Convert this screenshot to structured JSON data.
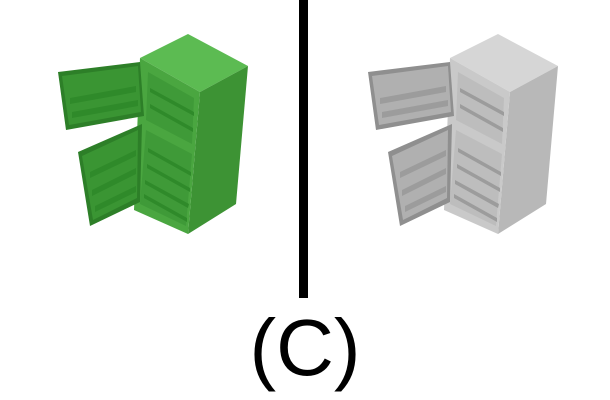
{
  "panel_label": "(C)",
  "left_fridge": {
    "icon": "open-refrigerator-icon",
    "render_style": "green-solid",
    "colors": {
      "front": "#4aa640",
      "side": "#3d9334",
      "top": "#5cbb52",
      "interior": "#3f9a38",
      "shelf": "#2f8a2a",
      "door_front": "#55b24b",
      "door_inner": "#3a9533",
      "door_edge": "#2d7f28"
    }
  },
  "right_fridge": {
    "icon": "open-refrigerator-icon",
    "render_style": "gray-solid",
    "colors": {
      "front": "#c9c9c9",
      "side": "#b8b8b8",
      "top": "#d6d6d6",
      "interior": "#bdbdbd",
      "shelf": "#9c9c9c",
      "door_front": "#cfcfcf",
      "door_inner": "#b0b0b0",
      "door_edge": "#8f8f8f"
    }
  },
  "divider_color": "#000000"
}
